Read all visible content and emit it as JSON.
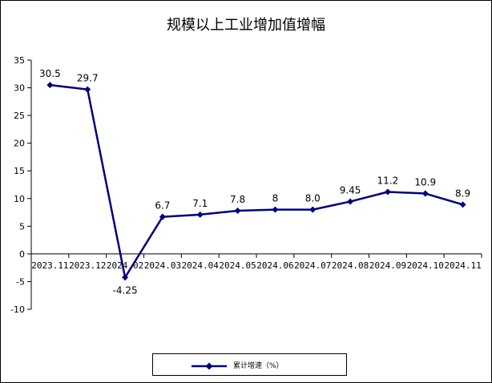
{
  "chart_data": {
    "type": "line",
    "title": "规模以上工业增加值增幅",
    "categories": [
      "2023.11",
      "2023.12",
      "2024.02",
      "2024.03",
      "2024.04",
      "2024.05",
      "2024.06",
      "2024.07",
      "2024.08",
      "2024.09",
      "2024.10",
      "2024.11"
    ],
    "x_tick_labels": [
      "2023.11",
      "2023.12",
      "2024.02",
      "2024.03",
      "2024.04",
      "2024.05",
      "2024.06",
      "2024.07",
      "2024.08",
      "2024.09",
      "2024.10",
      "2024.11"
    ],
    "series": [
      {
        "name": "累计增速（%）",
        "values": [
          30.5,
          29.7,
          -4.25,
          6.7,
          7.1,
          7.8,
          8,
          8.0,
          9.45,
          11.2,
          10.9,
          8.9
        ],
        "data_labels": [
          "30.5",
          "29.7",
          "-4.25",
          "6.7",
          "7.1",
          "7.8",
          "8",
          "8.0",
          "9.45",
          "11.2",
          "10.9",
          "8.9"
        ],
        "color": "#000080"
      }
    ],
    "ylim": [
      -10,
      35
    ],
    "y_ticks": [
      -10,
      -5,
      0,
      5,
      10,
      15,
      20,
      25,
      30,
      35
    ],
    "xlabel": "",
    "ylabel": "",
    "grid": false,
    "legend_position": "bottom",
    "marker": "diamond"
  }
}
